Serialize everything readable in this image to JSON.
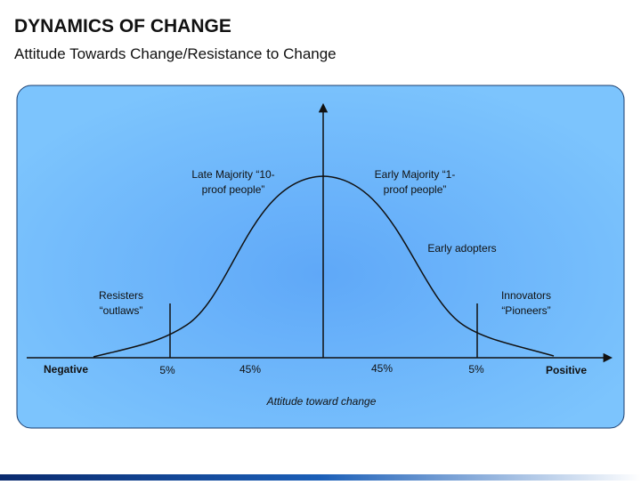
{
  "header": {
    "title": "DYNAMICS OF CHANGE",
    "subtitle": "Attitude Towards Change/Resistance to Change"
  },
  "labels": [
    {
      "lines": [
        "Late Majority “10-",
        "proof people”"
      ]
    },
    {
      "lines": [
        "Early Majority “1-",
        "proof people”"
      ]
    },
    {
      "lines": [
        "Early adopters"
      ]
    },
    {
      "lines": [
        "Resisters",
        "“outlaws”"
      ]
    },
    {
      "lines": [
        "Innovators",
        "“Pioneers”"
      ]
    }
  ],
  "axis": {
    "negative": "Negative",
    "positive": "Positive",
    "title": "Attitude toward change"
  },
  "segments": [
    "5%",
    "45%",
    "45%",
    "5%"
  ]
}
